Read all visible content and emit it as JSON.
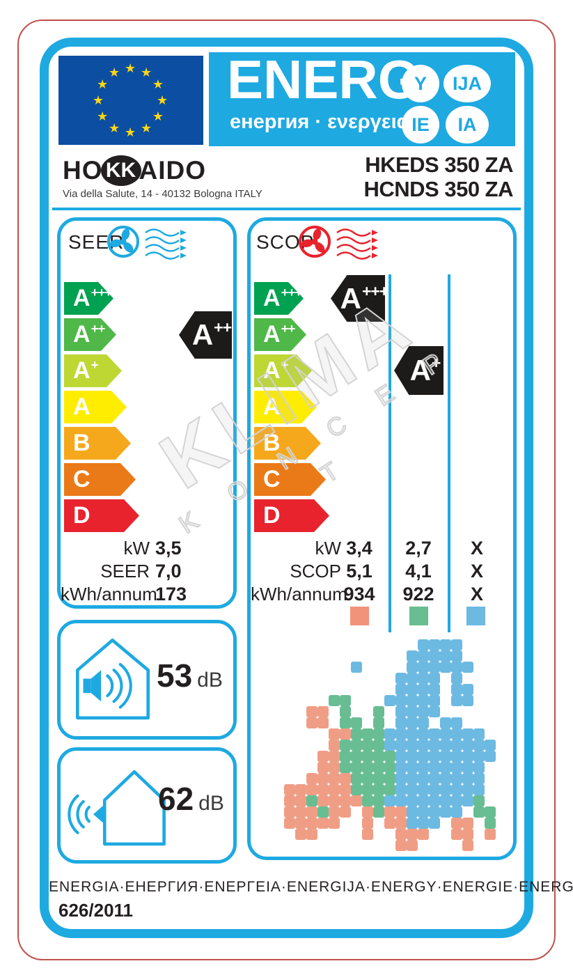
{
  "colors": {
    "cyan": "#1ea9e1",
    "eu_blue": "#0b4ea2",
    "star_yellow": "#ffd617",
    "red_frame": "#c0504d",
    "fan_cool": "#1ea9e1",
    "fan_heat": "#e8232d",
    "indicator_black": "#1c1b1a"
  },
  "header": {
    "logo_main": "ENERG",
    "logo_sub": "енергия · ενεργεια",
    "lang_circles": [
      "Y",
      "IJA",
      "IE",
      "IA"
    ]
  },
  "brand": {
    "name_pre": "HO",
    "name_circle": "KK",
    "name_post": "AIDO",
    "address": "Via della Salute, 14 - 40132 Bologna ITALY",
    "models": [
      "HKEDS 350 ZA",
      "HCNDS 350 ZA"
    ]
  },
  "energy_classes": [
    {
      "letter": "A",
      "sup": "+++",
      "color": "#00a150",
      "width": 71
    },
    {
      "letter": "A",
      "sup": "++",
      "color": "#4fb848",
      "width": 75
    },
    {
      "letter": "A",
      "sup": "+",
      "color": "#bed733",
      "width": 83
    },
    {
      "letter": "A",
      "sup": "",
      "color": "#ffed00",
      "width": 90
    },
    {
      "letter": "B",
      "sup": "",
      "color": "#f6a81c",
      "width": 96
    },
    {
      "letter": "C",
      "sup": "",
      "color": "#ea7a18",
      "width": 103
    },
    {
      "letter": "D",
      "sup": "",
      "color": "#e8232d",
      "width": 108
    }
  ],
  "seer": {
    "title": "SEER",
    "indicator": {
      "letter": "A",
      "sup": "++"
    },
    "rows": [
      {
        "label": "kW",
        "value": "3,5"
      },
      {
        "label": "SEER",
        "value": "7,0"
      },
      {
        "label": "kWh/annum",
        "value": "173"
      }
    ]
  },
  "scop": {
    "title": "SCOP",
    "indicator_warm": {
      "letter": "A",
      "sup": "+++"
    },
    "indicator_average": {
      "letter": "A",
      "sup": "+"
    },
    "row_labels": [
      "kW",
      "SCOP",
      "kWh/annum"
    ],
    "columns": [
      {
        "zone": "warmer",
        "square_color": "#f0937a",
        "values": [
          "3,4",
          "5,1",
          "934"
        ]
      },
      {
        "zone": "average",
        "square_color": "#68bd92",
        "values": [
          "2,7",
          "4,1",
          "922"
        ]
      },
      {
        "zone": "colder",
        "square_color": "#6cb9e2",
        "values": [
          "X",
          "X",
          "X"
        ]
      }
    ]
  },
  "noise": [
    {
      "value": "53",
      "unit": "dB",
      "location": "indoor"
    },
    {
      "value": "62",
      "unit": "dB",
      "location": "outdoor"
    }
  ],
  "footer": {
    "energy_words": "ENERGIA·ЕНЕРГИЯ·ΕΝΕΡΓΕΙΑ·ENERGIJA·ENERGY·ENERGIE·ENERGI",
    "regulation": "626/2011"
  },
  "watermark": {
    "line1": "KLIMA",
    "line2": "K O N C E P T"
  },
  "climate_map": {
    "cell": 16,
    "colors": {
      "c": "#6cb9e2",
      "a": "#68bd92",
      "w": "#f09d85"
    },
    "rows": [
      "............cccc....",
      "...........ccccc....",
      "......c....cccccc...",
      "..........cccc.c....",
      "..........cccc.cc...",
      "....aa...ccccc.cc...",
      "..ww.a..a.cccc......",
      "..ww.aa.a.ccc.cc....",
      "....wwaaaccccccccc..",
      "....waaaacccccccccc.",
      "...wwaaaaaccccccccc.",
      "...wwaaaaacccccccc..",
      "..wwwwaaaacccccccc..",
      "wwwwwwaaaacccccccc..",
      "wwawwwwaacccccccca..",
      "wwwaww.wawwccccc.aa.",
      "wwwww..w.wwccc.ww.a.",
      ".ww....w..www..ww.w.",
      "..........ww....w..."
    ]
  }
}
